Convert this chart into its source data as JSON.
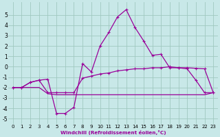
{
  "xlabel": "Windchill (Refroidissement éolien,°C)",
  "bg_color": "#c8e8e8",
  "grid_color": "#a0c8c0",
  "line_color": "#990099",
  "x": [
    0,
    1,
    2,
    3,
    4,
    5,
    6,
    7,
    8,
    9,
    10,
    11,
    12,
    13,
    14,
    15,
    16,
    17,
    18,
    19,
    20,
    21,
    22,
    23
  ],
  "line1": [
    -2.0,
    -2.0,
    -1.5,
    -1.3,
    -1.2,
    -4.5,
    -4.5,
    -3.9,
    0.3,
    -0.5,
    2.0,
    3.3,
    4.8,
    5.5,
    3.8,
    2.5,
    1.1,
    1.2,
    -0.1,
    -0.1,
    -0.2,
    -1.3,
    -2.5,
    -2.5
  ],
  "line2": [
    -2.0,
    -2.0,
    -1.5,
    -1.3,
    -2.5,
    -2.5,
    -2.5,
    -2.5,
    -1.1,
    -0.9,
    -0.7,
    -0.6,
    -0.4,
    -0.3,
    -0.2,
    -0.2,
    -0.1,
    -0.1,
    0.0,
    -0.1,
    -0.1,
    -0.15,
    -0.2,
    -2.5
  ],
  "line3": [
    -2.0,
    -2.0,
    -2.0,
    -2.0,
    -2.6,
    -2.7,
    -2.7,
    -2.7,
    -2.7,
    -2.7,
    -2.7,
    -2.7,
    -2.7,
    -2.7,
    -2.7,
    -2.7,
    -2.7,
    -2.7,
    -2.7,
    -2.7,
    -2.7,
    -2.7,
    -2.7,
    -2.5
  ],
  "ylim": [
    -5.5,
    6.2
  ],
  "yticks": [
    -5,
    -4,
    -3,
    -2,
    -1,
    0,
    1,
    2,
    3,
    4,
    5
  ],
  "xlim": [
    -0.5,
    23.5
  ],
  "xticks": [
    0,
    1,
    2,
    3,
    4,
    5,
    6,
    7,
    8,
    9,
    10,
    11,
    12,
    13,
    14,
    15,
    16,
    17,
    18,
    19,
    20,
    21,
    22,
    23
  ],
  "figsize": [
    3.2,
    2.0
  ],
  "dpi": 100
}
